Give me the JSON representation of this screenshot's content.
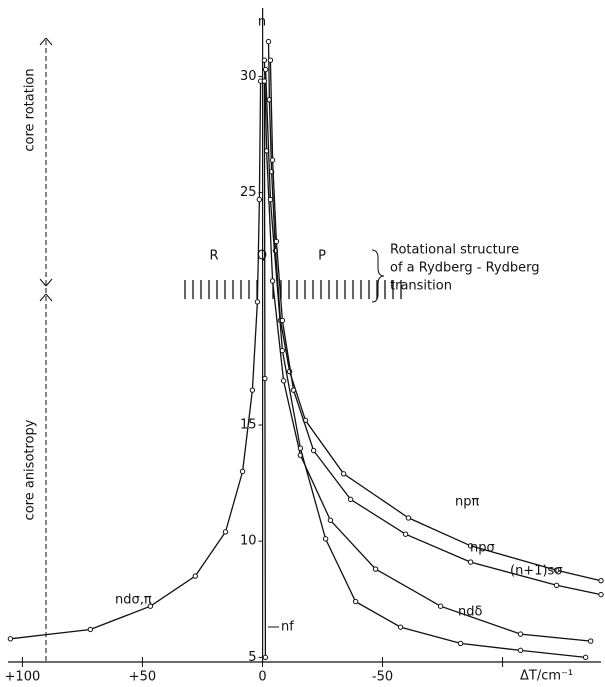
{
  "chart_data": {
    "type": "line",
    "x_label": "ΔT/cm⁻¹",
    "y_label": "n",
    "xlim": [
      106,
      -141
    ],
    "ylim": [
      4.8,
      32
    ],
    "xticks": [
      {
        "value": 100,
        "label": "+100"
      },
      {
        "value": 50,
        "label": "+50"
      },
      0,
      -50,
      -100
    ],
    "yticks": [
      5,
      10,
      15,
      25,
      30
    ],
    "annotations": [
      "R",
      "Q",
      "P",
      "Rotational structure",
      "of a Rydberg - Rydberg",
      "transition",
      "core rotation",
      "core anisotropy"
    ],
    "series": [
      {
        "name": "npπ",
        "color": "#111",
        "x": [
          -141,
          -122.5,
          -86.7,
          -60.8,
          -33.8,
          -17.9,
          -11.3,
          -7.5,
          -5.4,
          -3.8,
          -2.9,
          -2.5
        ],
        "values": [
          8.3,
          8.75,
          9.8,
          11.0,
          12.9,
          15.2,
          17.3,
          19.5,
          22.5,
          25.9,
          29.0,
          31.5
        ]
      },
      {
        "name": "npσ",
        "color": "#111",
        "x": [
          -141,
          -122.5,
          -86.7,
          -59.6,
          -36.7,
          -21.3,
          -12.9,
          -8.3,
          -5.8,
          -4.2,
          -3.3
        ],
        "values": [
          7.7,
          8.1,
          9.1,
          10.3,
          11.8,
          13.9,
          16.5,
          19.5,
          22.9,
          26.4,
          30.7
        ]
      },
      {
        "name": "(n+1)sσ",
        "color": "#111",
        "x": [
          -136.7,
          -107.5,
          -74.2,
          -47.1,
          -28.3,
          -15.8,
          -8.8,
          -4.2,
          -1.7,
          -0.8
        ],
        "values": [
          5.7,
          6.0,
          7.2,
          8.8,
          10.9,
          13.7,
          16.9,
          21.2,
          26.8,
          30.7
        ]
      },
      {
        "name": "ndδ",
        "color": "#111",
        "x": [
          -134.6,
          -107.5,
          -82.5,
          -57.5,
          -38.8,
          -26.3,
          -15.8,
          -8.3,
          -3.3,
          -1.3
        ],
        "values": [
          5.0,
          5.3,
          5.6,
          6.3,
          7.4,
          10.1,
          14.0,
          18.2,
          24.7,
          30.3
        ]
      },
      {
        "name": "ndσ,π",
        "color": "#111",
        "x": [
          105,
          71.7,
          46.7,
          28,
          15.4,
          8.3,
          4.2,
          2.1,
          1.3,
          0.8
        ],
        "values": [
          5.8,
          6.2,
          7.2,
          8.5,
          10.4,
          13.0,
          16.5,
          20.3,
          24.7,
          29.8
        ]
      },
      {
        "name": "nf",
        "color": "#111",
        "x": [
          -1.2,
          -1.0,
          -0.8
        ],
        "values": [
          5.0,
          17,
          29.8
        ]
      }
    ]
  }
}
